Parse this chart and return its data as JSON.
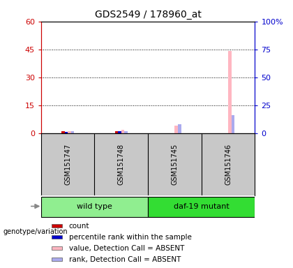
{
  "title": "GDS2549 / 178960_at",
  "samples": [
    "GSM151747",
    "GSM151748",
    "GSM151745",
    "GSM151746"
  ],
  "groups": [
    {
      "label": "wild type",
      "color": "#90EE90",
      "samples": [
        0,
        1
      ]
    },
    {
      "label": "daf-19 mutant",
      "color": "#33DD33",
      "samples": [
        2,
        3
      ]
    }
  ],
  "left_yticks": [
    0,
    15,
    30,
    45,
    60
  ],
  "right_yticks": [
    0,
    25,
    50,
    75,
    100
  ],
  "right_yticklabels": [
    "0",
    "25",
    "50",
    "75",
    "100%"
  ],
  "ylim_left": [
    0,
    60
  ],
  "ylim_right": [
    0,
    100
  ],
  "bar_data": {
    "count": [
      1,
      1,
      0,
      0
    ],
    "percentile": [
      1,
      2,
      0,
      0
    ],
    "value_absent": [
      1,
      2,
      4,
      44
    ],
    "rank_absent": [
      2,
      2,
      8,
      16
    ]
  },
  "bar_colors": {
    "count": "#CC0000",
    "percentile": "#0000CC",
    "value_absent": "#FFB6C1",
    "rank_absent": "#AAAAEE"
  },
  "bar_width": 0.06,
  "legend_items": [
    {
      "label": "count",
      "color": "#CC0000"
    },
    {
      "label": "percentile rank within the sample",
      "color": "#0000CC"
    },
    {
      "label": "value, Detection Call = ABSENT",
      "color": "#FFB6C1"
    },
    {
      "label": "rank, Detection Call = ABSENT",
      "color": "#AAAAEE"
    }
  ],
  "left_axis_color": "#CC0000",
  "right_axis_color": "#0000CC",
  "genotype_label": "genotype/variation",
  "background_color": "#FFFFFF",
  "plot_bg_color": "#FFFFFF",
  "sample_bg_color": "#C8C8C8"
}
